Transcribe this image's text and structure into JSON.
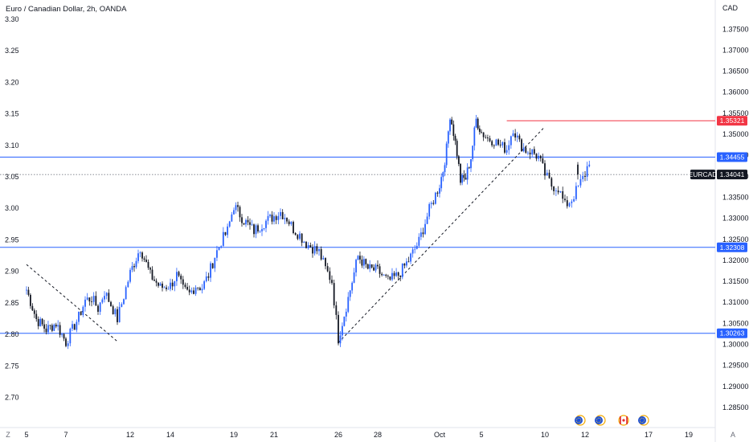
{
  "chart_title": "Euro / Canadian Dollar, 2h, OANDA",
  "symbol": "EURCAD",
  "currency": "CAD",
  "controls": {
    "zoom_button": "Z",
    "auto_button": "A"
  },
  "colors": {
    "candle_up": "#2962ff",
    "candle_down": "#131722",
    "support_line": "#2962ff",
    "resistance_line": "#f23645",
    "trendline": "#131722",
    "price_tag": "#131722"
  },
  "event_icons": [
    "eu-flag-icon",
    "eu-flag-icon",
    "canada-flag-icon",
    "eu-flag-icon"
  ],
  "chart_data": {
    "type": "candlestick",
    "title": "Euro / Canadian Dollar, 2h, OANDA",
    "x_ticks": [
      "5",
      "7",
      "12",
      "14",
      "19",
      "21",
      "26",
      "28",
      "Oct",
      "5",
      "10",
      "12",
      "17",
      "19"
    ],
    "y_right_ticks": [
      "1.37500",
      "1.37000",
      "1.36500",
      "1.36000",
      "1.35500",
      "1.35000",
      "1.34500",
      "1.34000",
      "1.33500",
      "1.33000",
      "1.32500",
      "1.32000",
      "1.31500",
      "1.31000",
      "1.30500",
      "1.30000",
      "1.29500",
      "1.29000",
      "1.28500"
    ],
    "y_right_range": [
      1.2825,
      1.3785
    ],
    "y_left_ticks": [
      "3.30",
      "3.25",
      "3.20",
      "3.15",
      "3.10",
      "3.05",
      "3.00",
      "2.95",
      "2.90",
      "2.85",
      "2.80",
      "2.75",
      "2.70"
    ],
    "y_left_range": [
      2.6675,
      3.3075
    ],
    "horizontal_levels": [
      {
        "price": 1.34455,
        "label": "1.34455",
        "style": "support"
      },
      {
        "price": 1.32308,
        "label": "1.32308",
        "style": "support"
      },
      {
        "price": 1.30263,
        "label": "1.30263",
        "style": "support"
      },
      {
        "price": 1.35321,
        "label": "1.35321",
        "style": "resistance",
        "x_start": "Oct 7"
      }
    ],
    "last_price": {
      "price": 1.34041,
      "label": "1.34041"
    },
    "trendlines": [
      {
        "from": [
          "Sep 5",
          1.319
        ],
        "to": [
          "Sep 11",
          1.3007
        ]
      },
      {
        "from": [
          "Sep 26",
          1.3004
        ],
        "to": [
          "Oct 10",
          1.3518
        ]
      }
    ],
    "path": [
      [
        "Sep 5",
        1.313
      ],
      [
        "Sep 5",
        1.306
      ],
      [
        "Sep 6",
        1.3035
      ],
      [
        "Sep 6",
        1.305
      ],
      [
        "Sep 7",
        1.3005
      ],
      [
        "Sep 7",
        1.3035
      ],
      [
        "Sep 8",
        1.3065
      ],
      [
        "Sep 8",
        1.3105
      ],
      [
        "Sep 9",
        1.311
      ],
      [
        "Sep 9",
        1.3085
      ],
      [
        "Sep 10",
        1.3125
      ],
      [
        "Sep 10",
        1.3095
      ],
      [
        "Sep 11",
        1.306
      ],
      [
        "Sep 11",
        1.3115
      ],
      [
        "Sep 12",
        1.317
      ],
      [
        "Sep 12",
        1.323
      ],
      [
        "Sep 13",
        1.3165
      ],
      [
        "Sep 13",
        1.3135
      ],
      [
        "Sep 14",
        1.314
      ],
      [
        "Sep 14",
        1.3165
      ],
      [
        "Sep 15",
        1.313
      ],
      [
        "Sep 15",
        1.312
      ],
      [
        "Sep 16",
        1.314
      ],
      [
        "Sep 16",
        1.3135
      ],
      [
        "Sep 17",
        1.3165
      ],
      [
        "Sep 17",
        1.321
      ],
      [
        "Sep 18",
        1.3245
      ],
      [
        "Sep 18",
        1.327
      ],
      [
        "Sep 19",
        1.333
      ],
      [
        "Sep 19",
        1.3295
      ],
      [
        "Sep 20",
        1.327
      ],
      [
        "Sep 20",
        1.329
      ],
      [
        "Sep 21",
        1.3305
      ],
      [
        "Sep 21",
        1.3315
      ],
      [
        "Sep 22",
        1.33
      ],
      [
        "Sep 22",
        1.3275
      ],
      [
        "Sep 23",
        1.326
      ],
      [
        "Sep 23",
        1.324
      ],
      [
        "Sep 24",
        1.323
      ],
      [
        "Sep 24",
        1.322
      ],
      [
        "Sep 25",
        1.318
      ],
      [
        "Sep 25",
        1.315
      ],
      [
        "Sep 26",
        1.3014
      ],
      [
        "Sep 26",
        1.311
      ],
      [
        "Sep 27",
        1.321
      ],
      [
        "Sep 27",
        1.318
      ],
      [
        "Sep 28",
        1.3175
      ],
      [
        "Sep 28",
        1.315
      ],
      [
        "Sep 29",
        1.3165
      ],
      [
        "Sep 29",
        1.32
      ],
      [
        "Sep 30",
        1.3245
      ],
      [
        "Sep 30",
        1.332
      ],
      [
        "Oct 1",
        1.338
      ],
      [
        "Oct 1",
        1.3415
      ],
      [
        "Oct 1",
        1.3465
      ],
      [
        "Oct 2",
        1.3548
      ],
      [
        "Oct 2",
        1.3505
      ],
      [
        "Oct 2",
        1.3455
      ],
      [
        "Oct 3",
        1.339
      ],
      [
        "Oct 3",
        1.3395
      ],
      [
        "Oct 4",
        1.3445
      ],
      [
        "Oct 4",
        1.3535
      ],
      [
        "Oct 5",
        1.3505
      ],
      [
        "Oct 5",
        1.349
      ],
      [
        "Oct 6",
        1.3485
      ],
      [
        "Oct 6",
        1.3472
      ],
      [
        "Oct 7",
        1.3465
      ],
      [
        "Oct 7",
        1.3515
      ],
      [
        "Oct 8",
        1.3478
      ],
      [
        "Oct 8",
        1.3462
      ],
      [
        "Oct 9",
        1.3458
      ],
      [
        "Oct 9",
        1.3445
      ],
      [
        "Oct 10",
        1.3405
      ],
      [
        "Oct 10",
        1.3378
      ],
      [
        "Oct 10",
        1.3372
      ],
      [
        "Oct 11",
        1.333
      ],
      [
        "Oct 11",
        1.3345
      ],
      [
        "Oct 11",
        1.3375
      ],
      [
        "Oct 12",
        1.3405
      ],
      [
        "Oct 12",
        1.3438
      ],
      [
        "Oct 12",
        1.34041
      ]
    ]
  }
}
